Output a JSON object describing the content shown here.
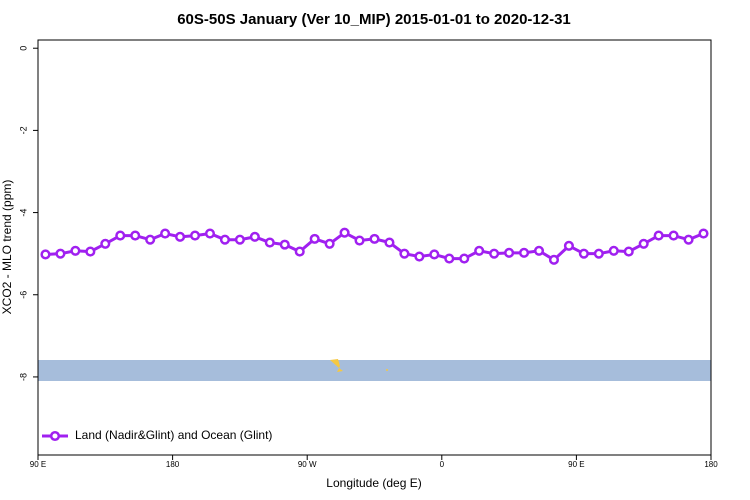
{
  "chart_data": {
    "type": "line",
    "title": "60S-50S January (Ver 10_MIP)   2015-01-01 to 2020-12-31",
    "x_label": "Longitude (deg E)",
    "y_label": "XCO2 - MLO trend (ppm)",
    "x": [
      95,
      105,
      115,
      125,
      135,
      145,
      155,
      165,
      175,
      185,
      195,
      205,
      215,
      225,
      235,
      245,
      255,
      265,
      275,
      285,
      295,
      305,
      315,
      325,
      335,
      345,
      355,
      365,
      375,
      385,
      395,
      405,
      415,
      425,
      435,
      445,
      455,
      465,
      475,
      485,
      495,
      505,
      515,
      525,
      535
    ],
    "series": [
      {
        "name": "Land (Nadir&Glint) and Ocean (Glint)",
        "color": "#a020f0",
        "values": [
          -5.02,
          -5.0,
          -4.93,
          -4.95,
          -4.76,
          -4.56,
          -4.56,
          -4.66,
          -4.51,
          -4.59,
          -4.56,
          -4.51,
          -4.66,
          -4.66,
          -4.59,
          -4.73,
          -4.78,
          -4.95,
          -4.64,
          -4.76,
          -4.49,
          -4.68,
          -4.64,
          -4.73,
          -5.0,
          -5.07,
          -5.02,
          -5.12,
          -5.12,
          -4.93,
          -5.0,
          -4.98,
          -4.98,
          -4.93,
          -5.15,
          -4.81,
          -5.0,
          -5.0,
          -4.93,
          -4.95,
          -4.76,
          -4.56,
          -4.56,
          -4.66,
          -4.51
        ]
      }
    ],
    "xlim": [
      90,
      540
    ],
    "xticks": [
      {
        "value": 90,
        "label": "90 E"
      },
      {
        "value": 180,
        "label": "180"
      },
      {
        "value": 270,
        "label": "90 W"
      },
      {
        "value": 360,
        "label": "0"
      },
      {
        "value": 450,
        "label": "90 E"
      },
      {
        "value": 540,
        "label": "180"
      }
    ],
    "ylim": [
      -9.9,
      0.2
    ],
    "yticks": [
      0,
      -2,
      -4,
      -6,
      -8
    ],
    "legend": "bottom-left"
  }
}
